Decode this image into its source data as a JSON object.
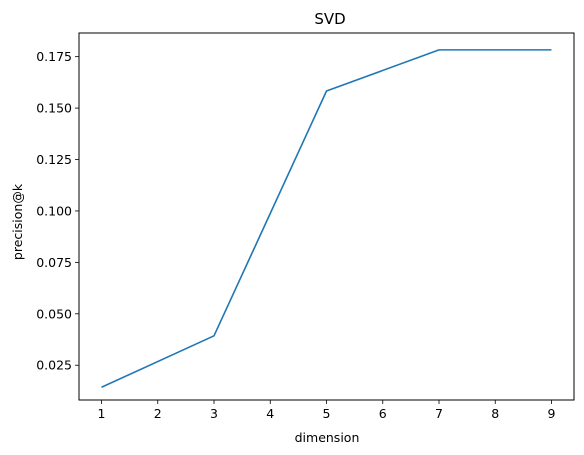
{
  "chart_data": {
    "type": "line",
    "title": "SVD",
    "xlabel": "dimension",
    "ylabel": "precision@k",
    "x": [
      1,
      3,
      5,
      7,
      9
    ],
    "series": [
      {
        "values": [
          0.0143,
          0.0393,
          0.1583,
          0.1783,
          0.1783
        ]
      }
    ],
    "xlim": [
      0.6,
      9.4
    ],
    "ylim": [
      0.0081,
      0.1865
    ],
    "xticks": [
      1,
      2,
      3,
      4,
      5,
      6,
      7,
      8,
      9
    ],
    "xtick_labels": [
      "1",
      "2",
      "3",
      "4",
      "5",
      "6",
      "7",
      "8",
      "9"
    ],
    "yticks": [
      0.025,
      0.05,
      0.075,
      0.1,
      0.125,
      0.15,
      0.175
    ],
    "ytick_labels": [
      "0.025",
      "0.050",
      "0.075",
      "0.100",
      "0.125",
      "0.150",
      "0.175"
    ],
    "grid": false,
    "line_color": "#1f77b4"
  }
}
